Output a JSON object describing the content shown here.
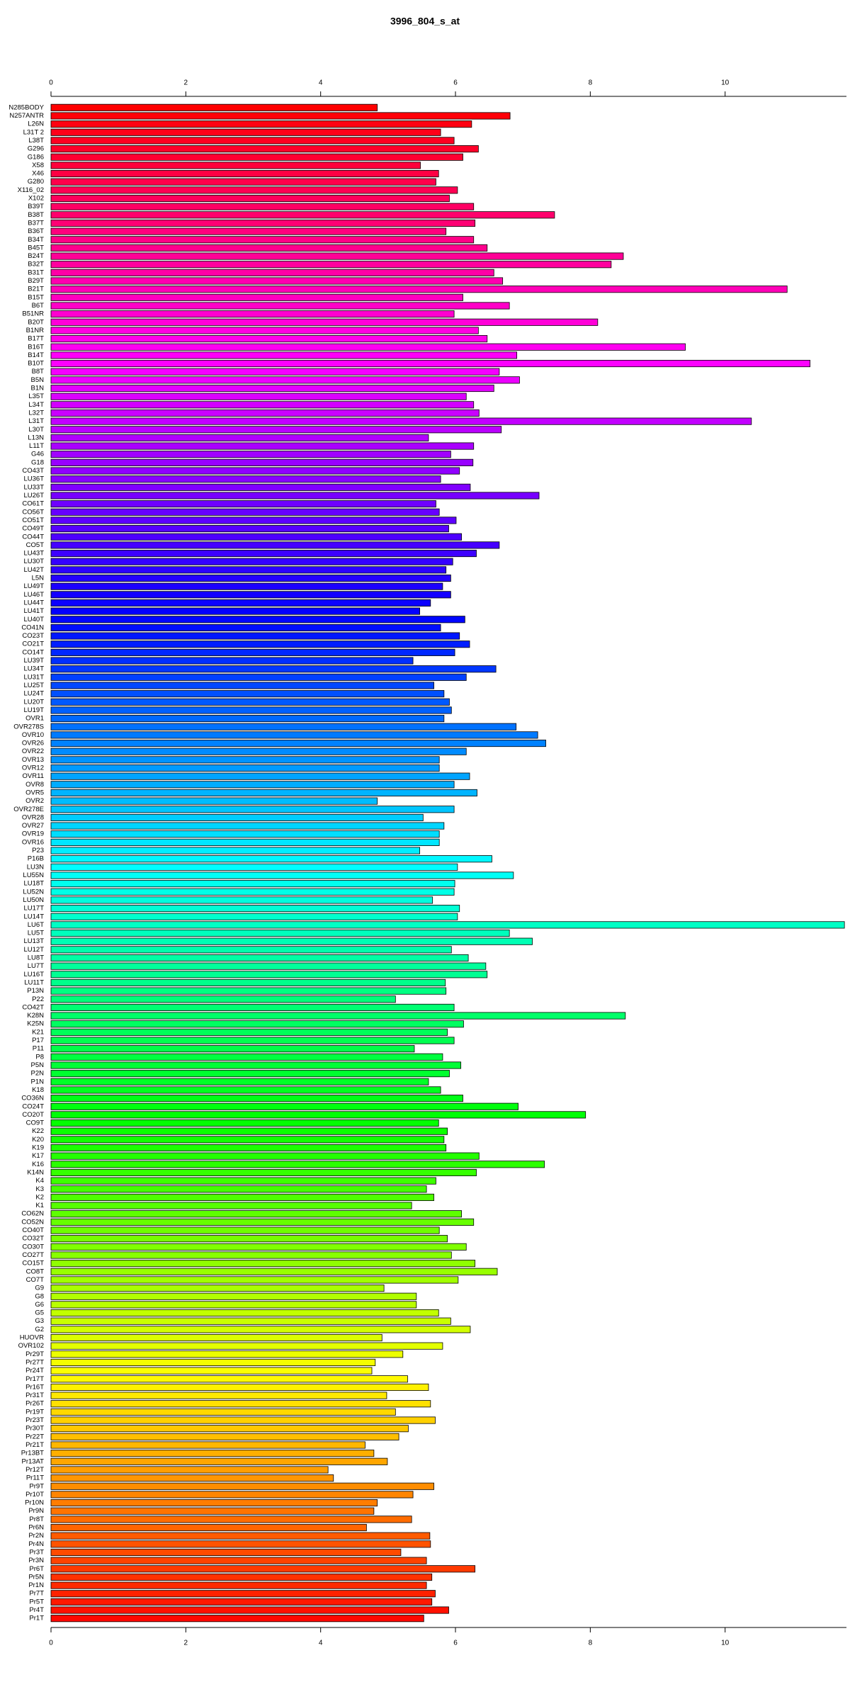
{
  "chart_data": {
    "type": "barh",
    "title": "3996_804_s_at",
    "categories": [
      "N285BODY",
      "N257ANTR",
      "L26N",
      "L31T 2",
      "L38T",
      "G296",
      "G186",
      "X58",
      "X46",
      "G280",
      "X116_02",
      "X102",
      "B39T",
      "B38T",
      "B37T",
      "B36T",
      "B34T",
      "B45T",
      "B24T",
      "B32T",
      "B31T",
      "B29T",
      "B21T",
      "B15T",
      "B6T",
      "B51NR",
      "B20T",
      "B1NR",
      "B17T",
      "B16T",
      "B14T",
      "B10T",
      "B8T",
      "B5N",
      "B1N",
      "L35T",
      "L34T",
      "L32T",
      "L31T",
      "L30T",
      "L13N",
      "L11T",
      "G46",
      "G18",
      "CO43T",
      "LU36T",
      "LU33T",
      "LU26T",
      "CO61T",
      "CO56T",
      "CO51T",
      "CO49T",
      "CO44T",
      "CO5T",
      "LU43T",
      "LU30T",
      "LU42T",
      "L5N",
      "LU49T",
      "LU46T",
      "LU44T",
      "LU41T",
      "LU40T",
      "CO41N",
      "CO23T",
      "CO21T",
      "CO14T",
      "LU39T",
      "LU34T",
      "LU31T",
      "LU25T",
      "LU24T",
      "LU20T",
      "LU19T",
      "OVR1",
      "OVR278S",
      "OVR10",
      "OVR26",
      "OVR22",
      "OVR13",
      "OVR12",
      "OVR11",
      "OVR8",
      "OVR5",
      "OVR2",
      "OVR278E",
      "OVR28",
      "OVR27",
      "OVR19",
      "OVR16",
      "P23",
      "P16B",
      "LU3N",
      "LU55N",
      "LU18T",
      "LU52N",
      "LU50N",
      "LU17T",
      "LU14T",
      "LU6T",
      "LU5T",
      "LU13T",
      "LU12T",
      "LU8T",
      "LU7T",
      "LU16T",
      "LU11T",
      "P13N",
      "P22",
      "CO42T",
      "K28N",
      "K25N",
      "K21",
      "P17",
      "P11",
      "P8",
      "P5N",
      "P2N",
      "P1N",
      "K18",
      "CO36N",
      "CO24T",
      "CO20T",
      "CO9T",
      "K22",
      "K20",
      "K19",
      "K17",
      "K16",
      "K14N",
      "K4",
      "K3",
      "K2",
      "K1",
      "CO62N",
      "CO52N",
      "CO40T",
      "CO32T",
      "CO30T",
      "CO27T",
      "CO15T",
      "CO8T",
      "CO7T",
      "G9",
      "G8",
      "G6",
      "G5",
      "G3",
      "G2",
      "HUOVR",
      "OVR102",
      "Pr29T",
      "Pr27T",
      "Pr24T",
      "Pr17T",
      "Pr16T",
      "Pr31T",
      "Pr26T",
      "Pr19T",
      "Pr23T",
      "Pr30T",
      "Pr22T",
      "Pr21T",
      "Pr13BT",
      "Pr13AT",
      "Pr12T",
      "Pr11T",
      "Pr9T",
      "Pr10T",
      "Pr10N",
      "Pr9N",
      "Pr8T",
      "Pr6N",
      "Pr2N",
      "Pr4N",
      "Pr3T",
      "Pr3N",
      "Pr6T",
      "Pr5N",
      "Pr1N",
      "Pr7T",
      "Pr5T",
      "Pr4T",
      "Pr1T"
    ],
    "values": [
      4.84,
      6.81,
      6.24,
      5.78,
      5.98,
      6.34,
      6.11,
      5.48,
      5.75,
      5.71,
      6.03,
      5.91,
      6.27,
      7.47,
      6.29,
      5.86,
      6.27,
      6.47,
      8.49,
      8.31,
      6.57,
      6.7,
      10.92,
      6.11,
      6.8,
      5.98,
      8.11,
      6.34,
      6.47,
      9.41,
      6.91,
      11.26,
      6.65,
      6.95,
      6.57,
      6.16,
      6.27,
      6.35,
      10.39,
      6.68,
      5.6,
      6.27,
      5.93,
      6.26,
      6.06,
      5.78,
      6.22,
      7.24,
      5.71,
      5.76,
      6.01,
      5.9,
      6.09,
      6.65,
      6.31,
      5.96,
      5.86,
      5.93,
      5.81,
      5.93,
      5.63,
      5.47,
      6.14,
      5.78,
      6.06,
      6.21,
      5.99,
      5.37,
      6.6,
      6.16,
      5.68,
      5.83,
      5.91,
      5.94,
      5.83,
      6.9,
      7.22,
      7.34,
      6.16,
      5.76,
      5.76,
      6.21,
      5.98,
      6.32,
      4.84,
      5.98,
      5.52,
      5.83,
      5.76,
      5.76,
      5.47,
      6.54,
      6.03,
      6.86,
      5.99,
      5.98,
      5.66,
      6.06,
      6.03,
      11.77,
      6.8,
      7.14,
      5.94,
      6.19,
      6.45,
      6.47,
      5.85,
      5.86,
      5.11,
      5.98,
      8.52,
      6.12,
      5.88,
      5.98,
      5.39,
      5.81,
      6.08,
      5.91,
      5.6,
      5.78,
      6.11,
      6.93,
      7.93,
      5.75,
      5.88,
      5.83,
      5.86,
      6.35,
      7.32,
      6.31,
      5.71,
      5.57,
      5.68,
      5.35,
      6.09,
      6.27,
      5.76,
      5.88,
      6.16,
      5.94,
      6.29,
      6.62,
      6.04,
      4.94,
      5.42,
      5.42,
      5.75,
      5.93,
      6.22,
      4.91,
      5.81,
      5.22,
      4.81,
      4.76,
      5.29,
      5.6,
      4.98,
      5.63,
      5.11,
      5.7,
      5.3,
      5.16,
      4.66,
      4.79,
      4.99,
      4.11,
      4.19,
      5.68,
      5.37,
      4.84,
      4.79,
      5.35,
      4.68,
      5.62,
      5.63,
      5.19,
      5.57,
      6.29,
      5.65,
      5.57,
      5.7,
      5.65,
      5.9,
      5.53
    ],
    "bar_colors": "rainbow",
    "xlim": [
      0,
      11.8
    ],
    "xticks": [
      0,
      2,
      4,
      6,
      8,
      10
    ],
    "grid": false
  }
}
